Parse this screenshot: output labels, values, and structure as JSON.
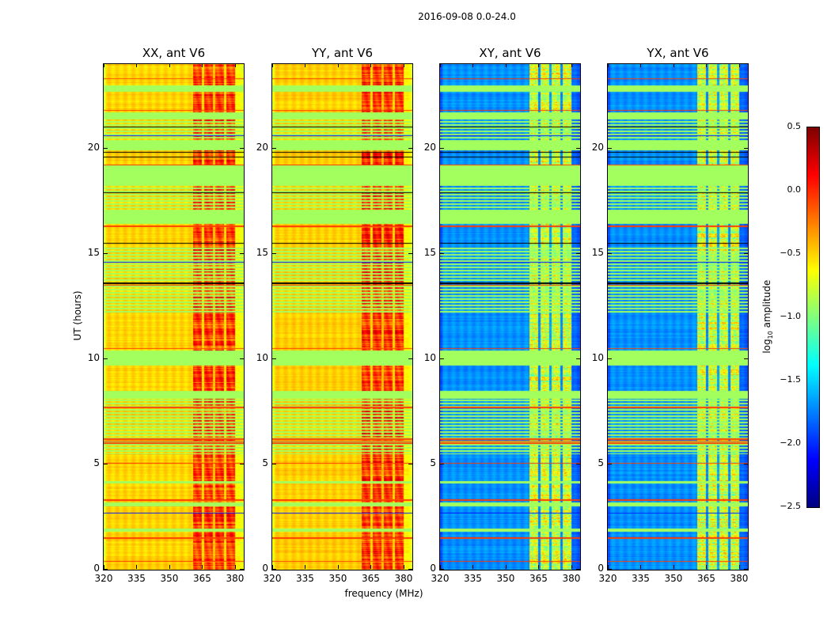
{
  "chart_data": {
    "type": "heatmap",
    "title": "2016-09-08 0.0-24.0",
    "xlabel": "frequency (MHz)",
    "ylabel": "UT (hours)",
    "xlim": [
      320,
      384
    ],
    "ylim": [
      0,
      24
    ],
    "xticks": [
      320,
      335,
      350,
      365,
      380
    ],
    "yticks": [
      0,
      5,
      10,
      15,
      20
    ],
    "colorbar": {
      "label_main": "log",
      "label_sub": "10",
      "label_rest": " amplitude",
      "range": [
        -2.5,
        0.5
      ],
      "ticks": [
        "0.5",
        "0.0",
        "−0.5",
        "−1.0",
        "−1.5",
        "−2.0",
        "−2.5"
      ],
      "tick_values": [
        0.5,
        0.0,
        -0.5,
        -1.0,
        -1.5,
        -2.0,
        -2.5
      ],
      "colormap": "jet"
    },
    "panels": [
      {
        "title": "XX, ant V6",
        "base_log_amp": -0.5,
        "rfi_log_amp": -0.05
      },
      {
        "title": "YY, ant V6",
        "base_log_amp": -0.48,
        "rfi_log_amp": -0.02
      },
      {
        "title": "XY, ant V6",
        "base_log_amp": -1.7,
        "rfi_log_amp": -0.75
      },
      {
        "title": "YX, ant V6",
        "base_log_amp": -1.7,
        "rfi_log_amp": -0.75
      }
    ],
    "rfi_channels_MHz": [
      [
        361,
        365
      ],
      [
        366,
        370
      ],
      [
        371,
        375
      ],
      [
        376,
        380
      ]
    ],
    "flagged_log_amp": -0.9,
    "flagged_ut_ranges": [
      [
        22.7,
        23.0
      ],
      [
        21.4,
        21.7
      ],
      [
        19.9,
        20.4
      ],
      [
        18.3,
        19.2
      ],
      [
        16.4,
        17.0
      ],
      [
        9.7,
        10.4
      ],
      [
        8.1,
        8.5
      ],
      [
        4.1,
        4.2
      ],
      [
        3.0,
        3.2
      ],
      [
        1.8,
        1.95
      ]
    ],
    "striped_ut_ranges": [
      [
        20.4,
        21.4
      ],
      [
        17.0,
        18.3
      ],
      [
        12.2,
        15.3
      ],
      [
        5.5,
        8.1
      ]
    ],
    "high_amp_lines_ut": [
      0.4,
      1.5,
      3.3,
      5.05,
      6.0,
      6.1,
      6.2,
      7.7,
      10.5,
      13.5,
      16.3,
      19.2,
      21.8,
      23.3
    ],
    "low_amp_lines_ut": [
      2.7,
      14.6,
      20.6
    ],
    "masked_lines_ut": [
      13.6,
      15.5,
      17.9,
      19.6,
      19.8,
      21.0
    ]
  }
}
